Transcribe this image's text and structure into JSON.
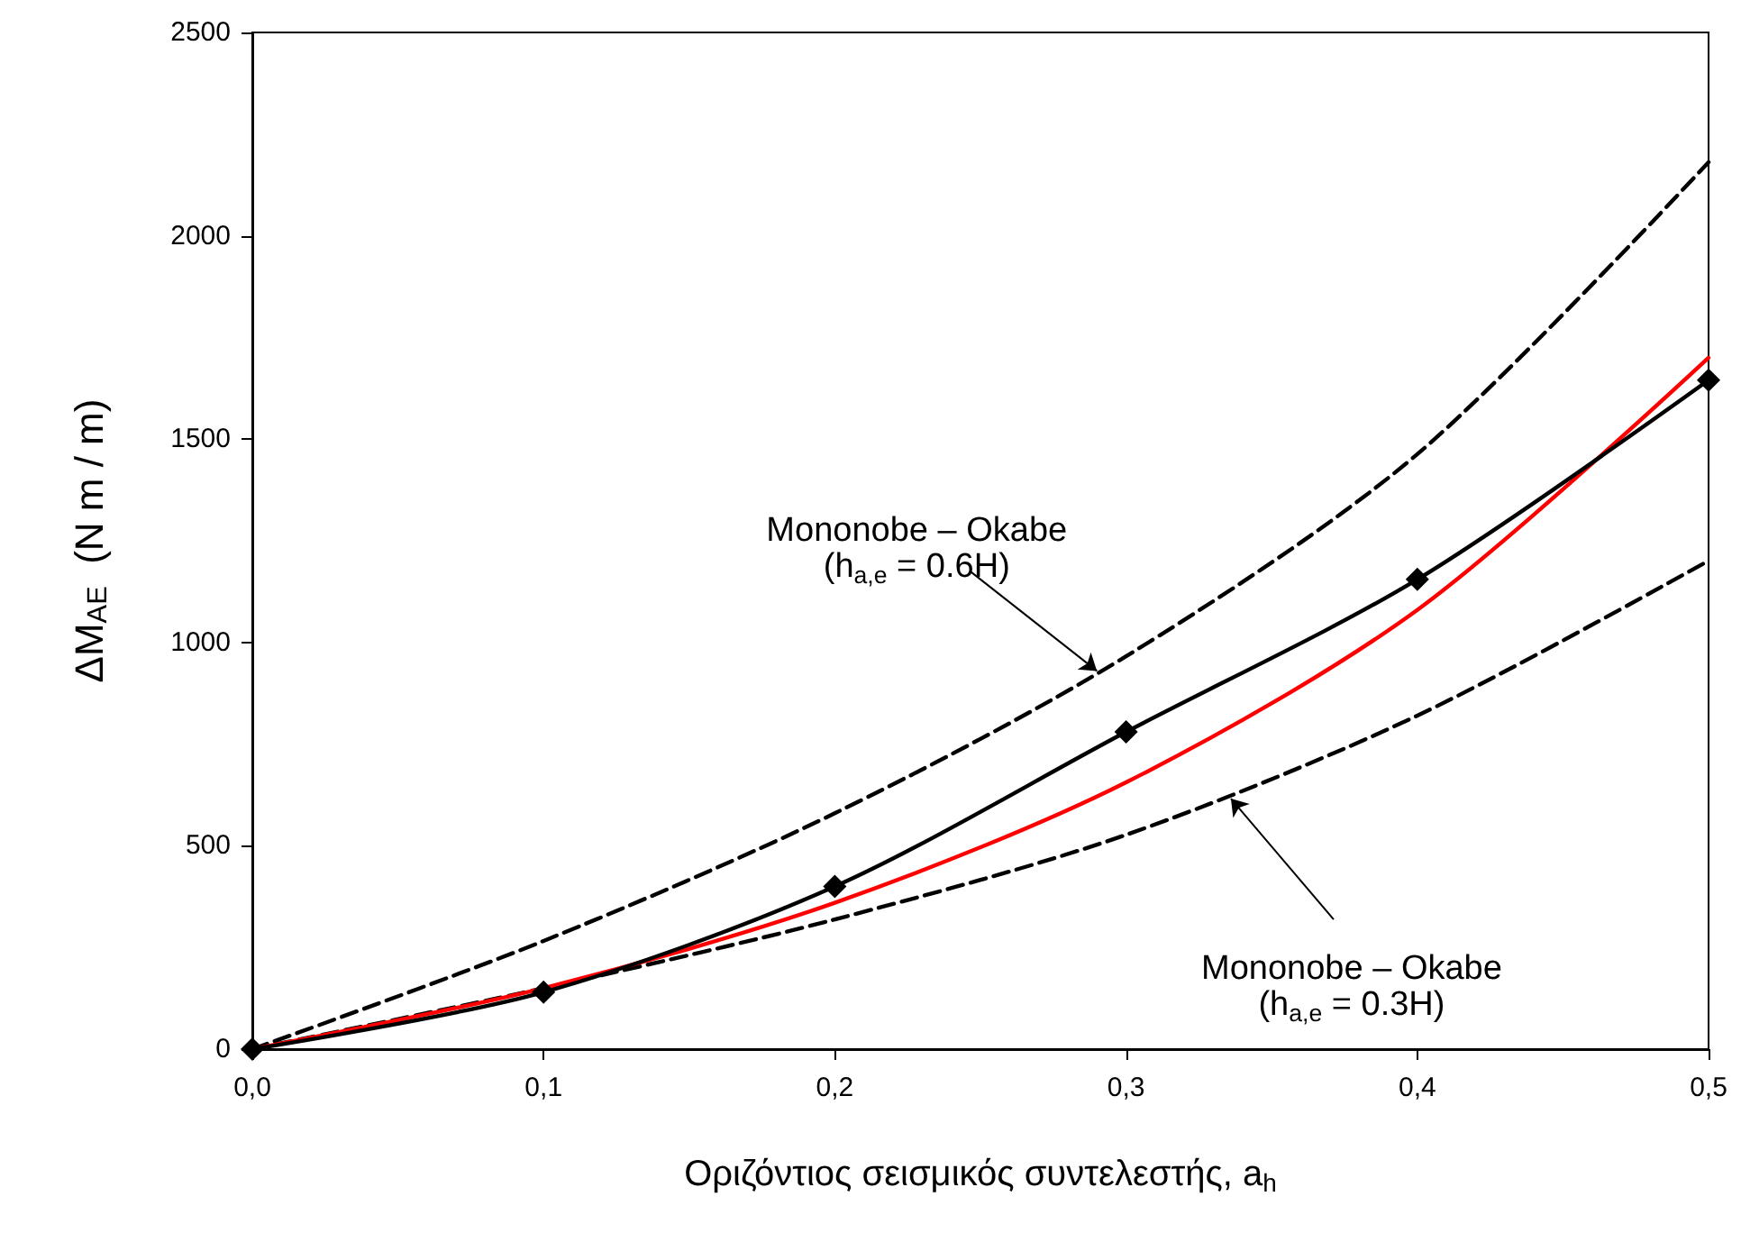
{
  "chart_data": {
    "type": "line",
    "xlabel": "Οριζόντιος σεισμικός συντελεστής, a$_{h}$",
    "ylabel": "ΔM$_{AE}$  (N m / m)",
    "x": [
      0,
      0.1,
      0.2,
      0.3,
      0.4,
      0.5
    ],
    "series": [
      {
        "color": "#000000",
        "values": [
          0,
          140,
          400,
          780,
          1155,
          1645
        ],
        "marker": "diamond",
        "line_style": "solid"
      },
      {
        "color": "#ff0000",
        "values": [
          0,
          150,
          360,
          656,
          1080,
          1700
        ],
        "marker": "none",
        "line_style": "solid"
      },
      {
        "color": "#000000",
        "values": [
          0,
          266,
          580,
          966,
          1463,
          2181
        ],
        "marker": "none",
        "line_style": "dashed"
      },
      {
        "color": "#000000",
        "values": [
          0,
          150,
          319,
          527,
          820,
          1201
        ],
        "marker": "none",
        "line_style": "dashed"
      }
    ],
    "xlim": [
      0,
      0.5
    ],
    "xticks": [
      {
        "value": 0,
        "label": "0,0"
      },
      {
        "value": 0.1,
        "label": "0,1"
      },
      {
        "value": 0.2,
        "label": "0,2"
      },
      {
        "value": 0.3,
        "label": "0,3"
      },
      {
        "value": 0.4,
        "label": "0,4"
      },
      {
        "value": 0.5,
        "label": "0,5"
      }
    ],
    "ylim": [
      0,
      2500
    ],
    "yticks": [
      0,
      500,
      1000,
      1500,
      2000,
      2500
    ],
    "grid": false,
    "annotations": [
      {
        "text": "Mononobe – Okabe\n(h$_{a,e}$ = 0.6H)",
        "x": 0.29,
        "y": 930
      },
      {
        "text": "Mononobe – Okabe\n(h$_{a,e}$ = 0.3H)",
        "x": 0.336,
        "y": 616
      }
    ]
  }
}
